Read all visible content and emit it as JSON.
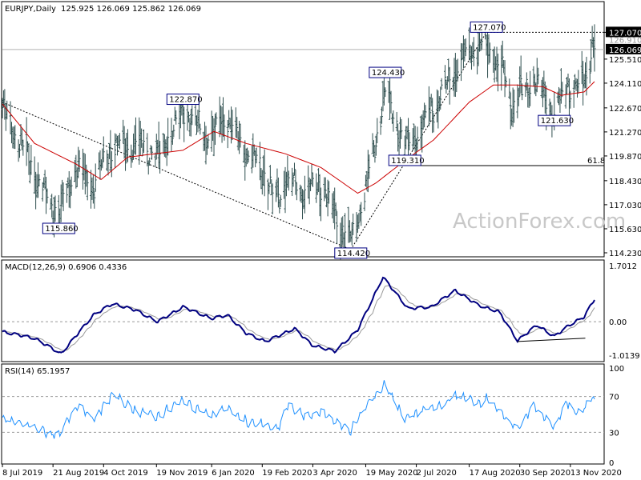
{
  "chart_data": {
    "type": "candlestick",
    "symbol": "EURJPY,Daily",
    "ohlc_header": "125.925 126.069 125.862 126.069",
    "last_price": "126.069",
    "watermark": "ActionForex.com",
    "colors": {
      "bars": "#2f4f4f",
      "ma": "#cc0000",
      "macd": "#000080",
      "signal": "#999999",
      "rsi": "#1e90ff",
      "label_border": "#000080",
      "level_line": "#000000"
    },
    "price_panel": {
      "ylim": [
        114.23,
        128.3
      ],
      "y_ticks": [
        "127.070",
        "125.510",
        "124.110",
        "122.670",
        "121.270",
        "119.870",
        "118.430",
        "117.030",
        "115.630",
        "114.230"
      ],
      "hidden_tick": "126.910",
      "annotations": [
        {
          "text": "127.070",
          "date": "Sep 1 2020",
          "value": 127.07
        },
        {
          "text": "124.430",
          "date": "Jun 5 2020",
          "value": 124.43
        },
        {
          "text": "122.870",
          "date": "Dec 12 2019",
          "value": 122.87
        },
        {
          "text": "121.630",
          "date": "Oct 30 2020",
          "value": 121.63
        },
        {
          "text": "119.310",
          "date": "Jun 22 2020",
          "value": 119.31
        },
        {
          "text": "115.860",
          "date": "Aug 26 2019",
          "value": 115.86
        },
        {
          "text": "114.420",
          "date": "May 6 2020",
          "value": 114.42
        }
      ],
      "fib_label": "61.8",
      "fib_level": 119.31,
      "resistance_level": 127.07
    },
    "macd_panel": {
      "title": "MACD(12,26,9) 0.6906 0.4336",
      "ylim": [
        -1.0139,
        1.7012
      ],
      "y_ticks": [
        "1.7012",
        "0.00",
        "-1.0139"
      ]
    },
    "rsi_panel": {
      "title": "RSI(14) 65.1957",
      "ylim": [
        0,
        100
      ],
      "y_ticks": [
        "100",
        "70",
        "30",
        "0"
      ],
      "levels": [
        30,
        70
      ]
    },
    "x_ticks": [
      "8 Jul 2019",
      "21 Aug 2019",
      "4 Oct 2019",
      "19 Nov 2019",
      "6 Jan 2020",
      "19 Feb 2020",
      "3 Apr 2020",
      "19 May 2020",
      "2 Jul 2020",
      "17 Aug 2020",
      "30 Sep 2020",
      "13 Nov 2020"
    ],
    "close_anchors": [
      {
        "date": "Jul 8 2019",
        "value": 122.7
      },
      {
        "date": "Aug 5 2019",
        "value": 118.9
      },
      {
        "date": "Aug 26 2019",
        "value": 116.3
      },
      {
        "date": "Sep 10 2019",
        "value": 119.4
      },
      {
        "date": "Sep 25 2019",
        "value": 118.1
      },
      {
        "date": "Oct 10 2019",
        "value": 120.4
      },
      {
        "date": "Nov 1 2019",
        "value": 120.6
      },
      {
        "date": "Nov 20 2019",
        "value": 119.9
      },
      {
        "date": "Dec 12 2019",
        "value": 122.5
      },
      {
        "date": "Jan 6 2020",
        "value": 120.9
      },
      {
        "date": "Jan 17 2020",
        "value": 122.3
      },
      {
        "date": "Feb 5 2020",
        "value": 120.1
      },
      {
        "date": "Feb 20 2020",
        "value": 119.0
      },
      {
        "date": "Mar 2 2020",
        "value": 117.2
      },
      {
        "date": "Mar 11 2020",
        "value": 118.5
      },
      {
        "date": "Mar 25 2020",
        "value": 117.8
      },
      {
        "date": "Apr 10 2020",
        "value": 118.2
      },
      {
        "date": "Apr 24 2020",
        "value": 116.2
      },
      {
        "date": "May 6 2020",
        "value": 114.9
      },
      {
        "date": "May 20 2020",
        "value": 118.2
      },
      {
        "date": "Jun 5 2020",
        "value": 123.6
      },
      {
        "date": "Jun 22 2020",
        "value": 120.6
      },
      {
        "date": "Jul 2 2020",
        "value": 121.1
      },
      {
        "date": "Jul 17 2020",
        "value": 122.8
      },
      {
        "date": "Aug 3 2020",
        "value": 124.7
      },
      {
        "date": "Aug 17 2020",
        "value": 125.9
      },
      {
        "date": "Sep 1 2020",
        "value": 126.2
      },
      {
        "date": "Sep 14 2020",
        "value": 124.9
      },
      {
        "date": "Sep 24 2020",
        "value": 122.9
      },
      {
        "date": "Oct 12 2020",
        "value": 124.4
      },
      {
        "date": "Oct 30 2020",
        "value": 122.3
      },
      {
        "date": "Nov 11 2020",
        "value": 124.2
      },
      {
        "date": "Nov 20 2020",
        "value": 123.6
      },
      {
        "date": "Nov 26 2020",
        "value": 124.6
      },
      {
        "date": "Dec 2 2020",
        "value": 126.2
      },
      {
        "date": "Dec 4 2020",
        "value": 126.07
      }
    ],
    "ma_anchors": [
      {
        "date": "Jul 8 2019",
        "value": 122.9
      },
      {
        "date": "Aug 5 2019",
        "value": 120.6
      },
      {
        "date": "Sep 10 2019",
        "value": 119.4
      },
      {
        "date": "Oct 2 2019",
        "value": 118.5
      },
      {
        "date": "Oct 25 2019",
        "value": 119.8
      },
      {
        "date": "Dec 12 2019",
        "value": 120.2
      },
      {
        "date": "Jan 8 2020",
        "value": 121.3
      },
      {
        "date": "Feb 5 2020",
        "value": 120.6
      },
      {
        "date": "Mar 10 2020",
        "value": 120.0
      },
      {
        "date": "Apr 10 2020",
        "value": 119.2
      },
      {
        "date": "May 12 2020",
        "value": 117.7
      },
      {
        "date": "May 28 2020",
        "value": 118.3
      },
      {
        "date": "Jun 22 2020",
        "value": 119.6
      },
      {
        "date": "Jul 17 2020",
        "value": 120.8
      },
      {
        "date": "Aug 17 2020",
        "value": 123.0
      },
      {
        "date": "Sep 7 2020",
        "value": 124.0
      },
      {
        "date": "Sep 28 2020",
        "value": 124.0
      },
      {
        "date": "Oct 20 2020",
        "value": 123.9
      },
      {
        "date": "Nov 5 2020",
        "value": 123.4
      },
      {
        "date": "Nov 25 2020",
        "value": 123.6
      },
      {
        "date": "Dec 4 2020",
        "value": 124.2
      }
    ],
    "macd_anchors": [
      {
        "date": "Jul 8 2019",
        "value": -0.3
      },
      {
        "date": "Aug 5 2019",
        "value": -0.5
      },
      {
        "date": "Aug 28 2019",
        "value": -0.97
      },
      {
        "date": "Sep 25 2019",
        "value": 0.2
      },
      {
        "date": "Oct 12 2019",
        "value": 0.55
      },
      {
        "date": "Nov 1 2019",
        "value": 0.35
      },
      {
        "date": "Nov 20 2019",
        "value": 0.0
      },
      {
        "date": "Dec 12 2019",
        "value": 0.45
      },
      {
        "date": "Jan 6 2020",
        "value": 0.1
      },
      {
        "date": "Jan 20 2020",
        "value": 0.2
      },
      {
        "date": "Feb 5 2020",
        "value": -0.35
      },
      {
        "date": "Feb 22 2020",
        "value": -0.6
      },
      {
        "date": "Mar 6 2020",
        "value": -0.4
      },
      {
        "date": "Mar 18 2020",
        "value": -0.2
      },
      {
        "date": "Apr 2 2020",
        "value": -0.7
      },
      {
        "date": "Apr 22 2020",
        "value": -0.9
      },
      {
        "date": "May 12 2020",
        "value": -0.25
      },
      {
        "date": "Jun 3 2020",
        "value": 1.35
      },
      {
        "date": "Jun 25 2020",
        "value": 0.4
      },
      {
        "date": "Jul 15 2020",
        "value": 0.45
      },
      {
        "date": "Aug 5 2020",
        "value": 0.95
      },
      {
        "date": "Aug 25 2020",
        "value": 0.5
      },
      {
        "date": "Sep 12 2020",
        "value": 0.3
      },
      {
        "date": "Sep 28 2020",
        "value": -0.57
      },
      {
        "date": "Oct 15 2020",
        "value": -0.1
      },
      {
        "date": "Oct 30 2020",
        "value": -0.45
      },
      {
        "date": "Nov 12 2020",
        "value": -0.1
      },
      {
        "date": "Nov 25 2020",
        "value": 0.15
      },
      {
        "date": "Dec 4 2020",
        "value": 0.69
      }
    ],
    "rsi_anchors": [
      {
        "date": "Jul 8 2019",
        "value": 45
      },
      {
        "date": "Jul 30 2019",
        "value": 38
      },
      {
        "date": "Aug 26 2019",
        "value": 25
      },
      {
        "date": "Sep 12 2019",
        "value": 62
      },
      {
        "date": "Sep 26 2019",
        "value": 44
      },
      {
        "date": "Oct 12 2019",
        "value": 72
      },
      {
        "date": "Oct 30 2019",
        "value": 55
      },
      {
        "date": "Nov 20 2019",
        "value": 48
      },
      {
        "date": "Dec 12 2019",
        "value": 66
      },
      {
        "date": "Jan 6 2020",
        "value": 48
      },
      {
        "date": "Jan 17 2020",
        "value": 58
      },
      {
        "date": "Feb 5 2020",
        "value": 42
      },
      {
        "date": "Feb 20 2020",
        "value": 38
      },
      {
        "date": "Mar 3 2020",
        "value": 32
      },
      {
        "date": "Mar 12 2020",
        "value": 60
      },
      {
        "date": "Mar 26 2020",
        "value": 48
      },
      {
        "date": "Apr 12 2020",
        "value": 52
      },
      {
        "date": "Apr 28 2020",
        "value": 37
      },
      {
        "date": "May 6 2020",
        "value": 32
      },
      {
        "date": "May 20 2020",
        "value": 60
      },
      {
        "date": "Jun 5 2020",
        "value": 84
      },
      {
        "date": "Jun 22 2020",
        "value": 45
      },
      {
        "date": "Jul 8 2020",
        "value": 55
      },
      {
        "date": "Jul 25 2020",
        "value": 60
      },
      {
        "date": "Aug 5 2020",
        "value": 72
      },
      {
        "date": "Aug 25 2020",
        "value": 63
      },
      {
        "date": "Sep 3 2020",
        "value": 68
      },
      {
        "date": "Sep 15 2020",
        "value": 48
      },
      {
        "date": "Sep 28 2020",
        "value": 34
      },
      {
        "date": "Oct 12 2020",
        "value": 60
      },
      {
        "date": "Oct 22 2020",
        "value": 45
      },
      {
        "date": "Oct 30 2020",
        "value": 36
      },
      {
        "date": "Nov 10 2020",
        "value": 63
      },
      {
        "date": "Nov 20 2020",
        "value": 50
      },
      {
        "date": "Nov 26 2020",
        "value": 57
      },
      {
        "date": "Dec 2 2020",
        "value": 72
      },
      {
        "date": "Dec 4 2020",
        "value": 65
      }
    ]
  }
}
